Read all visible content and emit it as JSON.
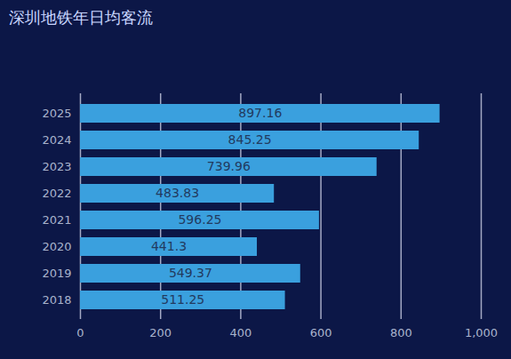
{
  "chart_data": {
    "type": "bar",
    "title": "深圳地铁年日均客流",
    "orientation": "horizontal",
    "categories": [
      "2025",
      "2024",
      "2023",
      "2022",
      "2021",
      "2020",
      "2019",
      "2018"
    ],
    "values": [
      897.16,
      845.25,
      739.96,
      483.83,
      596.25,
      441.3,
      549.37,
      511.25
    ],
    "color": "#3aa0de",
    "xlim": [
      0,
      1000
    ],
    "xticks": [
      0,
      200,
      400,
      600,
      800,
      {
        "value": 1000,
        "label": "1,000"
      }
    ],
    "grid": true,
    "data_labels": true
  }
}
